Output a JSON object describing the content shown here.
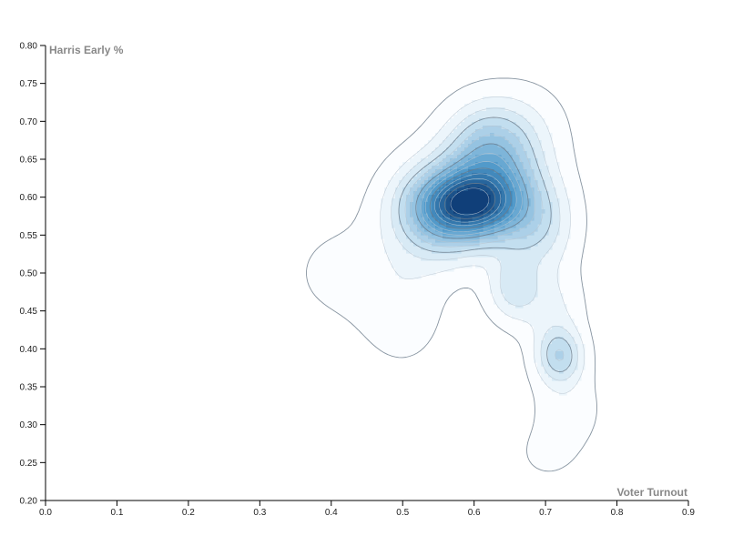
{
  "chart_data": {
    "type": "contour-density",
    "xlabel": "Voter Turnout",
    "ylabel": "Harris Early %",
    "xlim": [
      0.0,
      0.9
    ],
    "ylim": [
      0.2,
      0.8
    ],
    "xticks": [
      "0.0",
      "0.1",
      "0.2",
      "0.3",
      "0.4",
      "0.5",
      "0.6",
      "0.7",
      "0.8",
      "0.9"
    ],
    "yticks": [
      "0.20",
      "0.25",
      "0.30",
      "0.35",
      "0.40",
      "0.45",
      "0.50",
      "0.55",
      "0.60",
      "0.65",
      "0.70",
      "0.75",
      "0.80"
    ],
    "color_scale": [
      "#f7fbff",
      "#08306b"
    ],
    "density_components": [
      {
        "x": 0.595,
        "y": 0.59,
        "sx": 0.045,
        "sy": 0.03,
        "w": 1.0
      },
      {
        "x": 0.545,
        "y": 0.58,
        "sx": 0.045,
        "sy": 0.045,
        "w": 0.55
      },
      {
        "x": 0.63,
        "y": 0.62,
        "sx": 0.05,
        "sy": 0.05,
        "w": 0.55
      },
      {
        "x": 0.62,
        "y": 0.67,
        "sx": 0.04,
        "sy": 0.04,
        "w": 0.35
      },
      {
        "x": 0.69,
        "y": 0.56,
        "sx": 0.035,
        "sy": 0.04,
        "w": 0.3
      },
      {
        "x": 0.655,
        "y": 0.48,
        "sx": 0.025,
        "sy": 0.03,
        "w": 0.32
      },
      {
        "x": 0.72,
        "y": 0.39,
        "sx": 0.022,
        "sy": 0.025,
        "w": 0.45
      },
      {
        "x": 0.71,
        "y": 0.45,
        "sx": 0.03,
        "sy": 0.04,
        "w": 0.18
      },
      {
        "x": 0.73,
        "y": 0.32,
        "sx": 0.035,
        "sy": 0.04,
        "w": 0.12
      },
      {
        "x": 0.7,
        "y": 0.26,
        "sx": 0.03,
        "sy": 0.025,
        "w": 0.07
      },
      {
        "x": 0.42,
        "y": 0.5,
        "sx": 0.06,
        "sy": 0.05,
        "w": 0.09
      },
      {
        "x": 0.5,
        "y": 0.45,
        "sx": 0.04,
        "sy": 0.05,
        "w": 0.12
      },
      {
        "x": 0.68,
        "y": 0.7,
        "sx": 0.04,
        "sy": 0.04,
        "w": 0.08
      }
    ],
    "contour_levels": 14,
    "grid": false,
    "legend": "none"
  }
}
